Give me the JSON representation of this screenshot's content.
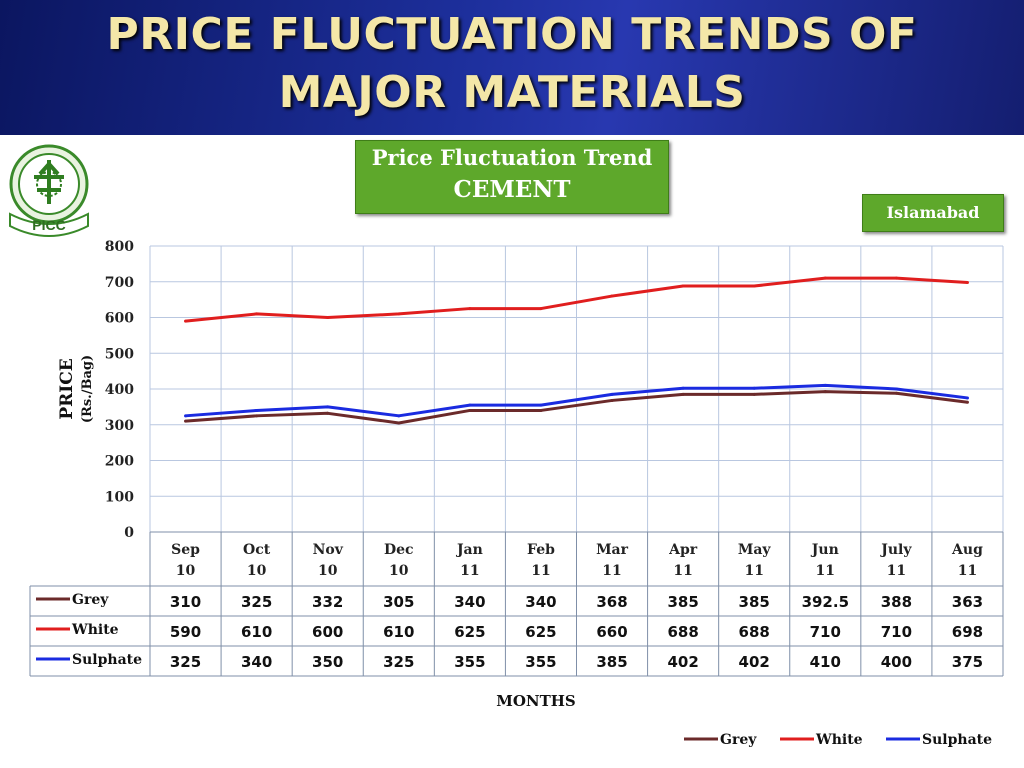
{
  "slide": {
    "title": "PRICE FLUCTUATION TRENDS OF\nMAJOR MATERIALS",
    "logo_text": "PICC"
  },
  "chart_badge": {
    "line1": "Price Fluctuation Trend",
    "line2": "CEMENT"
  },
  "city_badge": "Islamabad",
  "colors": {
    "Grey": "#6b2a2a",
    "White": "#e01e1e",
    "Sulphate": "#1a2be0",
    "grid": "#b9c7e0",
    "header_title": "#f4e7a8",
    "badge_green": "#5ea82b"
  },
  "chart_data": {
    "type": "line",
    "title": "Price Fluctuation Trend CEMENT",
    "xlabel": "MONTHS",
    "ylabel": "PRICE",
    "ylabel_sub": "(Rs./Bag)",
    "ylim": [
      0,
      800
    ],
    "yticks": [
      0,
      100,
      200,
      300,
      400,
      500,
      600,
      700,
      800
    ],
    "grid": true,
    "legend_position": "bottom-right",
    "categories": [
      [
        "Sep",
        "10"
      ],
      [
        "Oct",
        "10"
      ],
      [
        "Nov",
        "10"
      ],
      [
        "Dec",
        "10"
      ],
      [
        "Jan",
        "11"
      ],
      [
        "Feb",
        "11"
      ],
      [
        "Mar",
        "11"
      ],
      [
        "Apr",
        "11"
      ],
      [
        "May",
        "11"
      ],
      [
        "Jun",
        "11"
      ],
      [
        "July",
        "11"
      ],
      [
        "Aug",
        "11"
      ]
    ],
    "series": [
      {
        "name": "Grey",
        "values": [
          310,
          325,
          332,
          305,
          340,
          340,
          368,
          385,
          385,
          392.5,
          388,
          363
        ]
      },
      {
        "name": "White",
        "values": [
          590,
          610,
          600,
          610,
          625,
          625,
          660,
          688,
          688,
          710,
          710,
          698
        ]
      },
      {
        "name": "Sulphate",
        "values": [
          325,
          340,
          350,
          325,
          355,
          355,
          385,
          402,
          402,
          410,
          400,
          375
        ]
      }
    ],
    "legend": [
      "Grey",
      "White",
      "Sulphate"
    ]
  }
}
